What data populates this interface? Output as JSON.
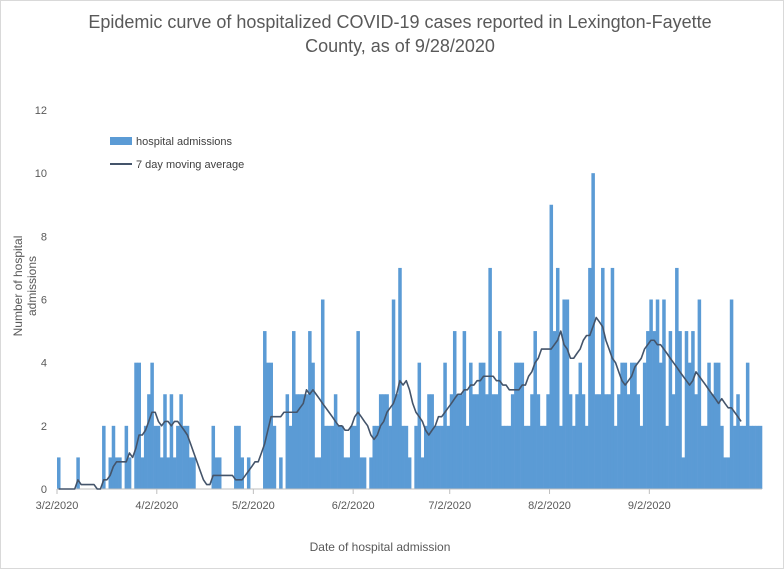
{
  "chart_data": {
    "type": "bar",
    "title_lines": [
      "Epidemic curve of hospitalized COVID-19 cases reported in Lexington-Fayette",
      "County, as of 9/28/2020"
    ],
    "xlabel": "Date of hospital admission",
    "ylabel": "Number of hospital admissions",
    "ylim": [
      0,
      12
    ],
    "y_ticks": [
      "0",
      "2",
      "4",
      "6",
      "8",
      "10",
      "12"
    ],
    "x_tick_labels": [
      "3/2/2020",
      "4/2/2020",
      "5/2/2020",
      "6/2/2020",
      "7/2/2020",
      "8/2/2020",
      "9/2/2020"
    ],
    "x_tick_day_index": [
      0,
      31,
      61,
      92,
      122,
      153,
      184
    ],
    "start_date": "3/2/2020",
    "grid": false,
    "legend": {
      "position": "top-left",
      "entries": [
        "hospital admissions",
        "7 day moving average"
      ]
    },
    "series": [
      {
        "name": "hospital admissions",
        "kind": "bar",
        "color": "#5b9bd5",
        "values": [
          1,
          0,
          0,
          0,
          0,
          0,
          1,
          0,
          0,
          0,
          0,
          0,
          0,
          0,
          2,
          0,
          1,
          2,
          1,
          1,
          0,
          2,
          1,
          0,
          4,
          4,
          1,
          2,
          3,
          4,
          2,
          2,
          1,
          3,
          1,
          3,
          1,
          2,
          3,
          2,
          2,
          1,
          1,
          0,
          0,
          0,
          0,
          0,
          2,
          1,
          1,
          0,
          0,
          0,
          0,
          2,
          2,
          1,
          0,
          1,
          0,
          0,
          0,
          0,
          5,
          4,
          4,
          2,
          0,
          1,
          0,
          3,
          2,
          5,
          3,
          3,
          3,
          3,
          5,
          4,
          1,
          1,
          6,
          2,
          2,
          2,
          3,
          2,
          2,
          1,
          1,
          2,
          2,
          5,
          1,
          1,
          0,
          1,
          2,
          2,
          3,
          3,
          3,
          2,
          6,
          3,
          7,
          2,
          2,
          1,
          0,
          2,
          4,
          1,
          2,
          3,
          3,
          2,
          2,
          2,
          4,
          2,
          3,
          5,
          3,
          3,
          5,
          2,
          4,
          3,
          3,
          4,
          4,
          3,
          7,
          3,
          3,
          5,
          2,
          2,
          2,
          3,
          4,
          4,
          4,
          2,
          2,
          3,
          5,
          3,
          2,
          2,
          3,
          9,
          5,
          7,
          2,
          6,
          6,
          3,
          2,
          3,
          4,
          3,
          2,
          7,
          10,
          3,
          3,
          7,
          3,
          3,
          7,
          2,
          3,
          4,
          4,
          3,
          4,
          4,
          3,
          2,
          4,
          5,
          6,
          5,
          6,
          4,
          6,
          2,
          5,
          3,
          7,
          5,
          1,
          5,
          4,
          5,
          3,
          6,
          2,
          2,
          4,
          3,
          4,
          4,
          2,
          1,
          1,
          6,
          2,
          3,
          2,
          2,
          4,
          2,
          2,
          2,
          2
        ]
      },
      {
        "name": "7 day moving average",
        "kind": "line",
        "color": "#44546a",
        "values": [
          0,
          0,
          0,
          0,
          0,
          0,
          0.29,
          0.14,
          0.14,
          0.14,
          0.14,
          0.14,
          0,
          0,
          0.29,
          0.29,
          0.43,
          0.71,
          0.86,
          0.86,
          0.86,
          0.86,
          1.14,
          1,
          1.29,
          1.71,
          1.71,
          1.86,
          2.14,
          2.43,
          2.43,
          2.14,
          2,
          2.14,
          2.14,
          2,
          2.14,
          2.14,
          2,
          1.86,
          1.71,
          1.43,
          1.14,
          0.86,
          0.57,
          0.29,
          0.14,
          0.14,
          0.43,
          0.43,
          0.43,
          0.43,
          0.43,
          0.43,
          0.43,
          0.29,
          0.29,
          0.29,
          0.43,
          0.57,
          0.71,
          0.86,
          0.86,
          1.14,
          1.43,
          1.86,
          2.29,
          2.29,
          2.29,
          2.29,
          2.43,
          2.43,
          2.43,
          2.43,
          2.43,
          2.57,
          2.71,
          3.14,
          3,
          3.14,
          3,
          2.86,
          2.71,
          2.57,
          2.43,
          2.29,
          2.14,
          2,
          2,
          1.86,
          1.86,
          2,
          2.29,
          2.43,
          2.29,
          2.14,
          2,
          1.71,
          1.57,
          1.71,
          2,
          2.14,
          2.43,
          2.57,
          2.71,
          3,
          3.43,
          3.29,
          3.43,
          3.14,
          2.71,
          2.43,
          2.29,
          2.14,
          1.86,
          1.71,
          1.86,
          2,
          2.29,
          2.29,
          2.43,
          2.57,
          2.71,
          2.86,
          3,
          3,
          3.14,
          3.14,
          3.29,
          3.29,
          3.43,
          3.43,
          3.57,
          3.57,
          3.57,
          3.57,
          3.43,
          3.43,
          3.29,
          3.29,
          3.14,
          3.14,
          3.14,
          3.14,
          3.29,
          3.29,
          3.57,
          3.71,
          4,
          4.14,
          4.43,
          4.43,
          4.43,
          4.43,
          4.57,
          4.71,
          5,
          4.57,
          4.43,
          4.14,
          4.14,
          4.29,
          4.43,
          4.71,
          4.86,
          4.86,
          5.14,
          5.43,
          5.29,
          5.14,
          4.71,
          4.43,
          4.14,
          4,
          3.71,
          3.43,
          3.29,
          3.43,
          3.57,
          3.86,
          4,
          4.14,
          4.43,
          4.57,
          4.71,
          4.71,
          4.57,
          4.57,
          4.43,
          4.29,
          4.14,
          4,
          3.86,
          3.71,
          3.57,
          3.43,
          3.29,
          3.43,
          3.71,
          3.57,
          3.43,
          3.29,
          3.14,
          3,
          2.86,
          2.71,
          2.86,
          2.71,
          2.57,
          2.57,
          2.43,
          2.29,
          2.14
        ]
      }
    ]
  }
}
